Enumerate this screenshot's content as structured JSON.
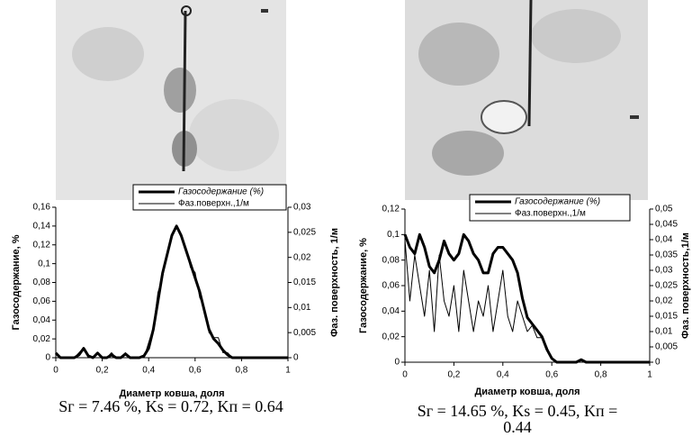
{
  "chart_data": [
    {
      "type": "line",
      "x_label": "Диаметр ковша,  доля",
      "y_label": "Газосодержание, %",
      "y2_label": "Фаз. поверхность, 1/м",
      "caption": "Sг = 7.46 %, Ks = 0.72, Kп = 0.64",
      "xlim": [
        0,
        1
      ],
      "xticks": [
        0,
        {
          "value": 0.2,
          "label": "0,2"
        },
        {
          "value": 0.4,
          "label": "0,4"
        },
        {
          "value": 0.6,
          "label": "0,6"
        },
        {
          "value": 0.8,
          "label": "0,8"
        },
        1
      ],
      "ylim": [
        0,
        0.16
      ],
      "yticks": [
        0,
        {
          "value": 0.02,
          "label": "0,02"
        },
        {
          "value": 0.04,
          "label": "0,04"
        },
        {
          "value": 0.06,
          "label": "0,06"
        },
        {
          "value": 0.08,
          "label": "0,08"
        },
        {
          "value": 0.1,
          "label": "0,1"
        },
        {
          "value": 0.12,
          "label": "0,12"
        },
        {
          "value": 0.14,
          "label": "0,14"
        },
        {
          "value": 0.16,
          "label": "0,16"
        }
      ],
      "y2lim": [
        0,
        0.03
      ],
      "y2ticks": [
        0,
        {
          "value": 0.005,
          "label": "0,005"
        },
        {
          "value": 0.01,
          "label": "0,01"
        },
        {
          "value": 0.015,
          "label": "0,015"
        },
        {
          "value": 0.02,
          "label": "0,02"
        },
        {
          "value": 0.025,
          "label": "0,025"
        },
        {
          "value": 0.03,
          "label": "0,03"
        }
      ],
      "x": [
        0,
        0.02,
        0.04,
        0.06,
        0.08,
        0.1,
        0.12,
        0.14,
        0.16,
        0.18,
        0.2,
        0.22,
        0.24,
        0.26,
        0.28,
        0.3,
        0.32,
        0.34,
        0.36,
        0.38,
        0.4,
        0.42,
        0.44,
        0.46,
        0.48,
        0.5,
        0.52,
        0.54,
        0.56,
        0.58,
        0.6,
        0.62,
        0.64,
        0.66,
        0.68,
        0.7,
        0.72,
        0.74,
        0.76,
        0.78,
        0.8,
        0.82,
        0.84,
        0.86,
        0.88,
        0.9,
        0.92,
        0.94,
        0.96,
        0.98,
        1
      ],
      "series": [
        {
          "name": "Газосодержание (%)",
          "color": "#000000",
          "width": 3,
          "values": [
            0.005,
            0,
            0,
            0,
            0,
            0.003,
            0.01,
            0.002,
            0,
            0.005,
            0,
            0,
            0.003,
            0,
            0,
            0.004,
            0,
            0,
            0,
            0.002,
            0.01,
            0.03,
            0.06,
            0.09,
            0.11,
            0.13,
            0.14,
            0.13,
            0.115,
            0.1,
            0.085,
            0.07,
            0.05,
            0.03,
            0.02,
            0.015,
            0.008,
            0.003,
            0,
            0,
            0,
            0,
            0,
            0,
            0,
            0,
            0,
            0,
            0,
            0,
            0
          ]
        },
        {
          "name": "Фаз.поверхн.,1/м",
          "color": "#000000",
          "width": 1,
          "axis": "y2",
          "values": [
            0.001,
            0,
            0,
            0,
            0,
            0.001,
            0.002,
            0,
            0,
            0.001,
            0,
            0,
            0.001,
            0,
            0,
            0.001,
            0,
            0,
            0,
            0,
            0.003,
            0.006,
            0.013,
            0.016,
            0.021,
            0.024,
            0.026,
            0.024,
            0.022,
            0.018,
            0.017,
            0.012,
            0.01,
            0.005,
            0.004,
            0.004,
            0.001,
            0.001,
            0,
            0,
            0,
            0,
            0,
            0,
            0,
            0,
            0,
            0,
            0,
            0,
            0
          ]
        }
      ]
    },
    {
      "type": "line",
      "x_label": "Диаметр ковша,   доля",
      "y_label": "Газосодержание, %",
      "y2_label": "Фаз. поверхность,1/м",
      "caption": "Sг = 14.65 %, Ks = 0.45, Kп = 0.44",
      "xlim": [
        0,
        1
      ],
      "xticks": [
        0,
        {
          "value": 0.2,
          "label": "0,2"
        },
        {
          "value": 0.4,
          "label": "0,4"
        },
        {
          "value": 0.6,
          "label": "0,6"
        },
        {
          "value": 0.8,
          "label": "0,8"
        },
        1
      ],
      "ylim": [
        0,
        0.12
      ],
      "yticks": [
        0,
        {
          "value": 0.02,
          "label": "0,02"
        },
        {
          "value": 0.04,
          "label": "0,04"
        },
        {
          "value": 0.06,
          "label": "0,06"
        },
        {
          "value": 0.08,
          "label": "0,08"
        },
        {
          "value": 0.1,
          "label": "0,1"
        },
        {
          "value": 0.12,
          "label": "0,12"
        }
      ],
      "y2lim": [
        0,
        0.05
      ],
      "y2ticks": [
        0,
        {
          "value": 0.005,
          "label": "0,005"
        },
        {
          "value": 0.01,
          "label": "0,01"
        },
        {
          "value": 0.015,
          "label": "0,015"
        },
        {
          "value": 0.02,
          "label": "0,02"
        },
        {
          "value": 0.025,
          "label": "0,025"
        },
        {
          "value": 0.03,
          "label": "0,03"
        },
        {
          "value": 0.035,
          "label": "0,035"
        },
        {
          "value": 0.04,
          "label": "0,04"
        },
        {
          "value": 0.045,
          "label": "0,045"
        },
        {
          "value": 0.05,
          "label": "0,05"
        }
      ],
      "x": [
        0,
        0.02,
        0.04,
        0.06,
        0.08,
        0.1,
        0.12,
        0.14,
        0.16,
        0.18,
        0.2,
        0.22,
        0.24,
        0.26,
        0.28,
        0.3,
        0.32,
        0.34,
        0.36,
        0.38,
        0.4,
        0.42,
        0.44,
        0.46,
        0.48,
        0.5,
        0.52,
        0.54,
        0.56,
        0.58,
        0.6,
        0.62,
        0.64,
        0.66,
        0.68,
        0.7,
        0.72,
        0.74,
        0.76,
        0.78,
        0.8,
        0.82,
        0.84,
        0.86,
        0.88,
        0.9,
        0.92,
        0.94,
        0.96,
        0.98,
        1
      ],
      "series": [
        {
          "name": "Газосодержание (%)",
          "color": "#000000",
          "width": 3,
          "values": [
            0.1,
            0.09,
            0.085,
            0.1,
            0.09,
            0.075,
            0.07,
            0.08,
            0.095,
            0.085,
            0.08,
            0.085,
            0.1,
            0.095,
            0.085,
            0.08,
            0.07,
            0.07,
            0.085,
            0.09,
            0.09,
            0.085,
            0.08,
            0.07,
            0.05,
            0.035,
            0.03,
            0.025,
            0.02,
            0.01,
            0.003,
            0,
            0,
            0,
            0,
            0,
            0.002,
            0,
            0,
            0,
            0,
            0,
            0,
            0,
            0,
            0,
            0,
            0,
            0,
            0,
            0
          ]
        },
        {
          "name": "Фаз.поверхн.,1/м",
          "color": "#000000",
          "width": 1,
          "axis": "y2",
          "values": [
            0.04,
            0.02,
            0.035,
            0.025,
            0.015,
            0.03,
            0.01,
            0.035,
            0.02,
            0.015,
            0.025,
            0.01,
            0.03,
            0.02,
            0.01,
            0.02,
            0.015,
            0.025,
            0.01,
            0.02,
            0.03,
            0.015,
            0.01,
            0.02,
            0.015,
            0.01,
            0.012,
            0.008,
            0.008,
            0.005,
            0.001,
            0,
            0,
            0,
            0,
            0,
            0.001,
            0,
            0,
            0,
            0,
            0,
            0,
            0,
            0,
            0,
            0,
            0,
            0,
            0,
            0
          ]
        }
      ]
    }
  ]
}
